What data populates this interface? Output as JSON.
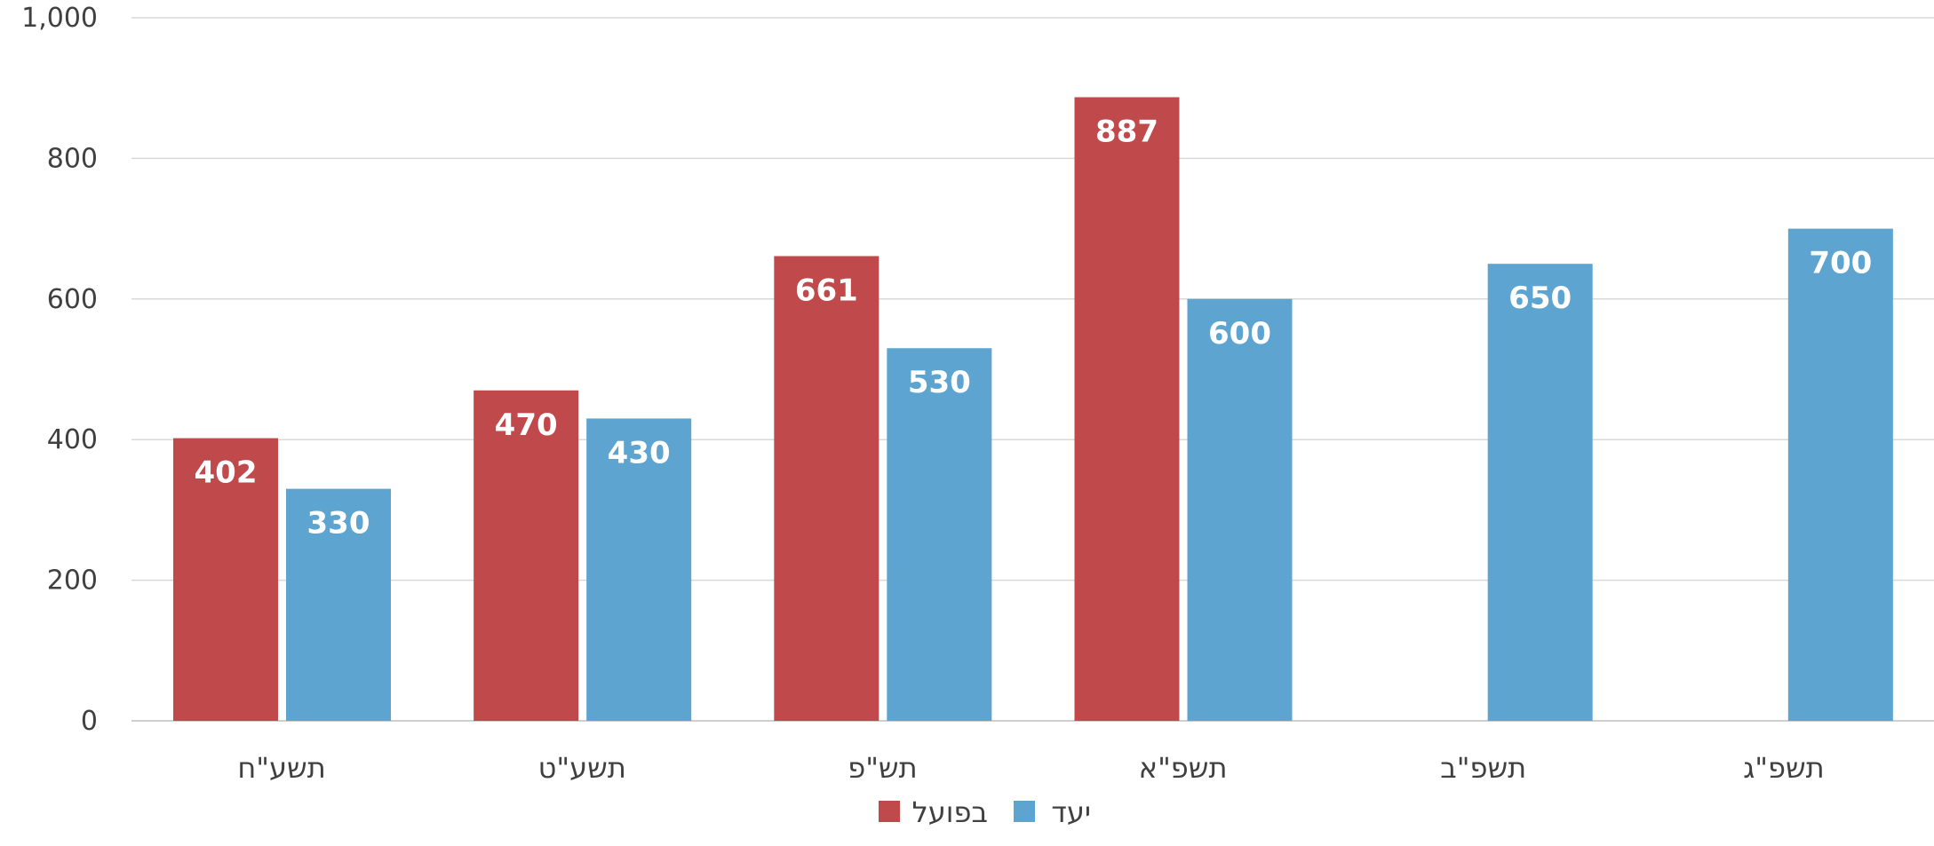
{
  "chart_data": {
    "type": "bar",
    "categories": [
      "תשע\"ח",
      "תשע\"ט",
      "תש\"פ",
      "תשפ\"א",
      "תשפ\"ב",
      "תשפ\"ג"
    ],
    "series": [
      {
        "name": "בפועל",
        "color": "#c0494b",
        "values": [
          402,
          470,
          661,
          887,
          null,
          null
        ]
      },
      {
        "name": "יעד",
        "color": "#5da5d0",
        "values": [
          330,
          430,
          530,
          600,
          650,
          700
        ]
      }
    ],
    "y_ticks": [
      "0",
      "200",
      "400",
      "600",
      "800",
      "1,000"
    ],
    "ylim": [
      0,
      1000
    ],
    "grid": true,
    "legend_position": "bottom-center",
    "title": "",
    "xlabel": "",
    "ylabel": ""
  }
}
